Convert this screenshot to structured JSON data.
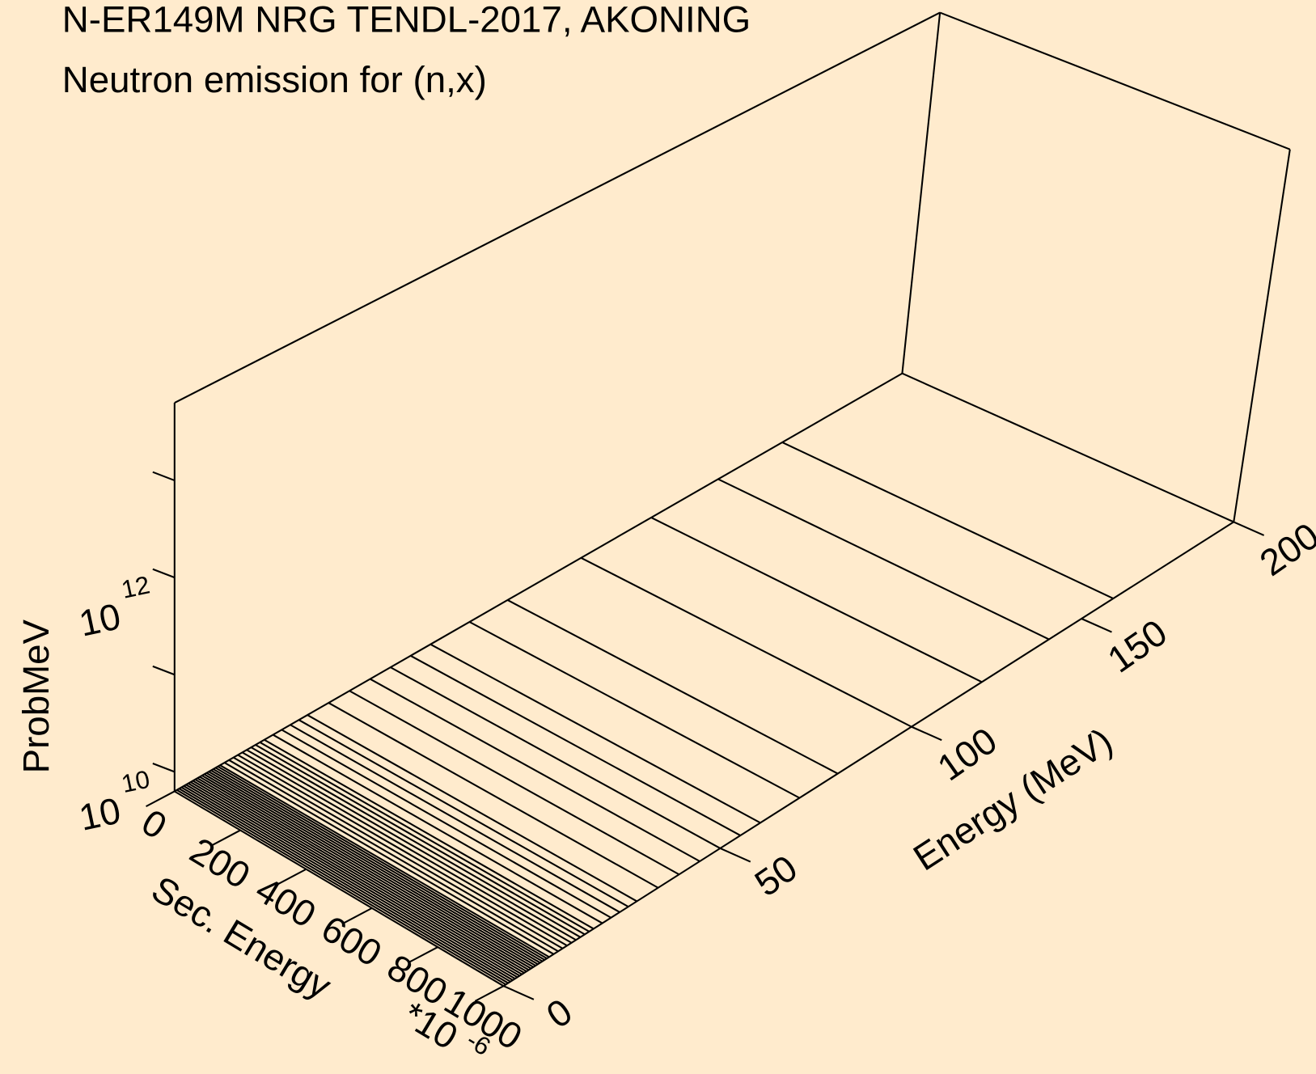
{
  "chart_data": {
    "type": "waterfall3d",
    "title": "N-ER149M NRG TENDL-2017, AKONING",
    "subtitle": "Neutron emission for (n,x)",
    "xlabel": "Sec. Energy",
    "xlabel_multiplier": "*10",
    "xlabel_multiplier_exponent": "-6",
    "ylabel": "Energy (MeV)",
    "zlabel": "ProbMeV",
    "xlim": [
      0,
      1000
    ],
    "xticks": [
      0,
      200,
      400,
      600,
      800,
      1000
    ],
    "ylim": [
      0,
      200
    ],
    "yticks": [
      0,
      50,
      100,
      150,
      200
    ],
    "zscale": "log",
    "zlim": [
      6300000000,
      63000000000000
    ],
    "zticks": [
      {
        "value": 10000000000,
        "label": "10",
        "exponent": "10"
      },
      {
        "value": 100000000000,
        "label": null
      },
      {
        "value": 1000000000000,
        "label": "10",
        "exponent": "12"
      },
      {
        "value": 10000000000000,
        "label": null
      }
    ],
    "color": "#000000",
    "background": "#ffebcd",
    "energies": [
      0.5,
      1,
      1.5,
      2,
      2.5,
      3,
      3.5,
      4,
      4.5,
      5,
      5.5,
      6,
      6.5,
      7,
      7.5,
      8,
      8.5,
      9,
      9.5,
      10,
      11,
      12,
      13,
      14,
      15,
      16,
      17,
      18,
      19,
      20,
      22,
      24,
      26,
      28,
      30,
      35,
      40,
      45,
      50,
      55,
      60,
      70,
      80,
      100,
      120,
      140,
      160
    ]
  }
}
